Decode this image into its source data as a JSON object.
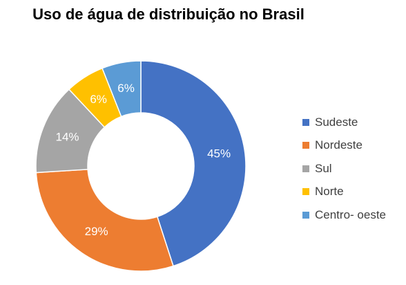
{
  "chart_data": {
    "type": "pie",
    "title": "Uso de água de distribuição no Brasil",
    "donut": true,
    "categories": [
      "Sudeste",
      "Nordeste",
      "Sul",
      "Norte",
      "Centro- oeste"
    ],
    "values": [
      45,
      29,
      14,
      6,
      6
    ],
    "labels": [
      "45%",
      "29%",
      "14%",
      "6%",
      "6%"
    ],
    "colors": [
      "#4472C4",
      "#ED7D31",
      "#A5A5A5",
      "#FFC000",
      "#5B9BD5"
    ],
    "legend_position": "right"
  }
}
